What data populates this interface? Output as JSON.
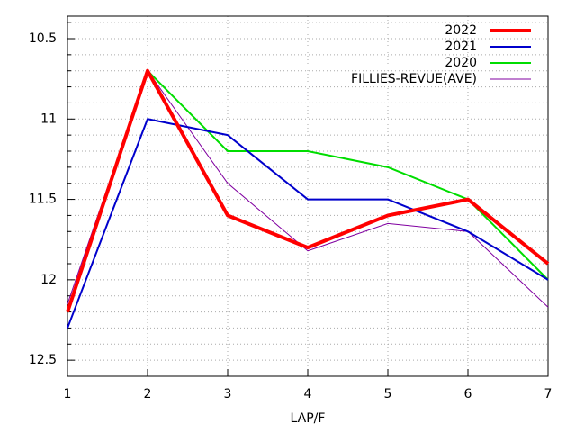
{
  "chart_data": {
    "type": "line",
    "xlabel": "LAP/F",
    "x": [
      1,
      2,
      3,
      4,
      5,
      6,
      7
    ],
    "xlim": [
      1,
      7
    ],
    "xticks": [
      1,
      2,
      3,
      4,
      5,
      6,
      7
    ],
    "ylim": [
      12.6,
      10.36
    ],
    "yticks": [
      10.5,
      11,
      11.5,
      12,
      12.5
    ],
    "y_minor_ticks": [
      10.4,
      10.6,
      10.7,
      10.8,
      10.9,
      11.1,
      11.2,
      11.3,
      11.4,
      11.6,
      11.7,
      11.8,
      11.9,
      12.1,
      12.2,
      12.3,
      12.4
    ],
    "grid": true,
    "legend": "top-right",
    "series": [
      {
        "name": "2022",
        "color": "#ff0000",
        "width": 4,
        "values": [
          12.2,
          10.7,
          11.6,
          11.8,
          11.6,
          11.5,
          11.9
        ]
      },
      {
        "name": "2021",
        "color": "#0000cc",
        "width": 2,
        "values": [
          12.3,
          11.0,
          11.1,
          11.5,
          11.5,
          11.7,
          12.0
        ]
      },
      {
        "name": "2020",
        "color": "#00dd00",
        "width": 2,
        "values": [
          12.2,
          10.7,
          11.2,
          11.2,
          11.3,
          11.5,
          12.0
        ]
      },
      {
        "name": "FILLIES-REVUE(AVE)",
        "color": "#8000a0",
        "width": 1,
        "values": [
          12.15,
          10.7,
          11.4,
          11.82,
          11.65,
          11.7,
          12.17
        ]
      }
    ]
  }
}
